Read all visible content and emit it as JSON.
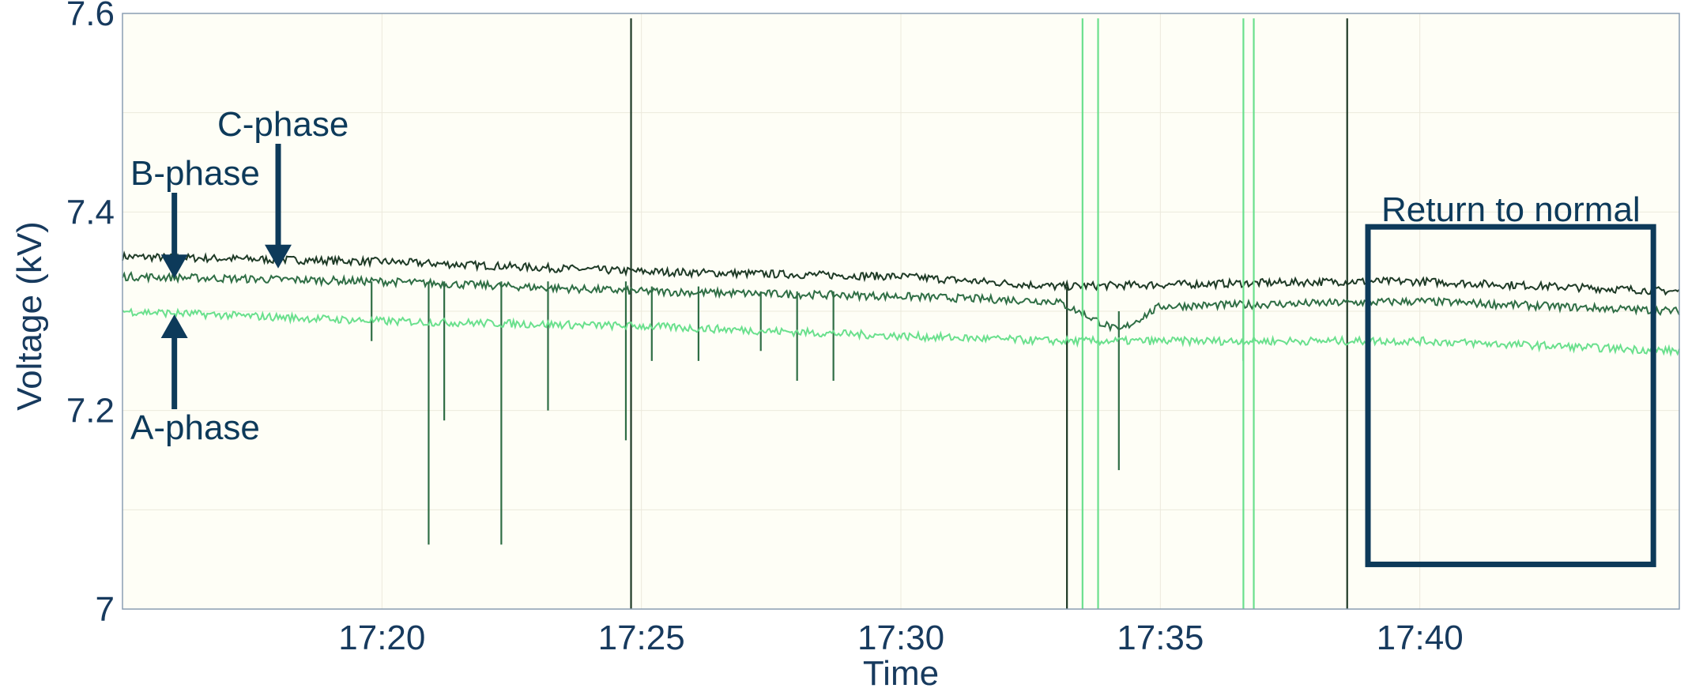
{
  "chart_data": {
    "type": "line",
    "title": "",
    "xlabel": "Time",
    "ylabel": "Voltage (kV)",
    "ylim": [
      7.0,
      7.6
    ],
    "xlim_minutes": [
      1035.0,
      1065.0
    ],
    "x_ticks": [
      "17:20",
      "17:25",
      "17:30",
      "17:35",
      "17:40"
    ],
    "x_tick_minutes": [
      1040,
      1045,
      1050,
      1055,
      1060
    ],
    "y_ticks": [
      "7",
      "7.2",
      "7.4",
      "7.6"
    ],
    "y_tick_values": [
      7.0,
      7.2,
      7.4,
      7.6
    ],
    "grid": true,
    "legend": "none",
    "background_color": "#fefef6",
    "annotations": [
      {
        "text": "C-phase",
        "color": "#0d3a5a",
        "arrow_time": "17:18",
        "arrow_value": 7.34
      },
      {
        "text": "B-phase",
        "color": "#0d3a5a",
        "arrow_time": "17:16",
        "arrow_value": 7.33
      },
      {
        "text": "A-phase",
        "color": "#0d3a5a",
        "arrow_time": "17:16",
        "arrow_value": 7.3
      },
      {
        "text": "Return to normal",
        "color": "#0d3a5a",
        "box_time": [
          "17:39",
          "17:44.5"
        ],
        "box_value": [
          7.045,
          7.385
        ]
      }
    ],
    "series": [
      {
        "name": "C-phase",
        "color": "#1e3a26",
        "x": [
          "17:15",
          "17:20",
          "17:25",
          "17:30",
          "17:33",
          "17:38.6",
          "17:40",
          "17:45"
        ],
        "values": [
          7.355,
          7.35,
          7.34,
          7.335,
          7.325,
          7.33,
          7.33,
          7.32
        ],
        "spikes": [
          {
            "x": "17:24.8",
            "min": 7.0,
            "max": 7.595
          },
          {
            "x": "17:33.2",
            "min": 7.0,
            "max": 7.325
          },
          {
            "x": "17:38.6",
            "min": 7.0,
            "max": 7.595
          }
        ]
      },
      {
        "name": "B-phase",
        "color": "#2f6e45",
        "x": [
          "17:15",
          "17:20",
          "17:25",
          "17:30",
          "17:33",
          "17:34.2",
          "17:35",
          "17:40",
          "17:45"
        ],
        "values": [
          7.335,
          7.33,
          7.32,
          7.315,
          7.31,
          7.28,
          7.305,
          7.31,
          7.3
        ],
        "spikes": [
          {
            "x": "17:19.8",
            "min": 7.27,
            "max": 7.33
          },
          {
            "x": "17:20.9",
            "min": 7.065,
            "max": 7.33
          },
          {
            "x": "17:21.2",
            "min": 7.19,
            "max": 7.33
          },
          {
            "x": "17:22.3",
            "min": 7.065,
            "max": 7.33
          },
          {
            "x": "17:23.2",
            "min": 7.2,
            "max": 7.33
          },
          {
            "x": "17:24.7",
            "min": 7.17,
            "max": 7.33
          },
          {
            "x": "17:25.2",
            "min": 7.25,
            "max": 7.325
          },
          {
            "x": "17:26.1",
            "min": 7.25,
            "max": 7.325
          },
          {
            "x": "17:27.3",
            "min": 7.26,
            "max": 7.32
          },
          {
            "x": "17:28.0",
            "min": 7.23,
            "max": 7.32
          },
          {
            "x": "17:28.7",
            "min": 7.23,
            "max": 7.32
          },
          {
            "x": "17:34.2",
            "min": 7.14,
            "max": 7.3
          },
          {
            "x": "17:36.6",
            "min": 7.25,
            "max": 7.31
          }
        ]
      },
      {
        "name": "A-phase",
        "color": "#6ae08d",
        "x": [
          "17:15",
          "17:20",
          "17:25",
          "17:30",
          "17:33",
          "17:35",
          "17:40",
          "17:45"
        ],
        "values": [
          7.3,
          7.29,
          7.285,
          7.275,
          7.27,
          7.27,
          7.27,
          7.26
        ],
        "spikes": [
          {
            "x": "17:33.5",
            "min": 7.0,
            "max": 7.595
          },
          {
            "x": "17:33.8",
            "min": 7.0,
            "max": 7.595
          },
          {
            "x": "17:36.6",
            "min": 7.0,
            "max": 7.595
          },
          {
            "x": "17:36.8",
            "min": 7.0,
            "max": 7.595
          }
        ]
      }
    ]
  }
}
